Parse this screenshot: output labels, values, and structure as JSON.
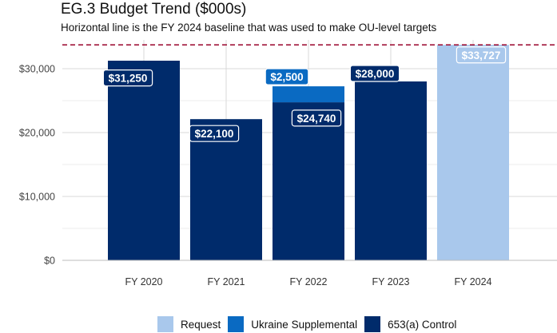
{
  "chart_data": {
    "type": "bar",
    "stacked": true,
    "title": "EG.3 Budget Trend ($000s)",
    "subtitle": "Horizontal line is the FY 2024 baseline that was used to make OU-level targets",
    "categories": [
      "FY 2020",
      "FY 2021",
      "FY 2022",
      "FY 2023",
      "FY 2024"
    ],
    "series": [
      {
        "name": "653(a) Control",
        "color": "#002b6b",
        "values": [
          31250,
          22100,
          24740,
          28000,
          0
        ]
      },
      {
        "name": "Ukraine Supplemental",
        "color": "#0a6ac2",
        "values": [
          0,
          0,
          2500,
          0,
          0
        ]
      },
      {
        "name": "Request",
        "color": "#a9c8ec",
        "values": [
          0,
          0,
          0,
          0,
          33727
        ]
      }
    ],
    "data_labels": [
      {
        "text": "$31,250",
        "category": "FY 2020",
        "series": "653(a) Control"
      },
      {
        "text": "$22,100",
        "category": "FY 2021",
        "series": "653(a) Control"
      },
      {
        "text": "$2,500",
        "category": "FY 2022",
        "series": "Ukraine Supplemental"
      },
      {
        "text": "$24,740",
        "category": "FY 2022",
        "series": "653(a) Control"
      },
      {
        "text": "$28,000",
        "category": "FY 2023",
        "series": "653(a) Control"
      },
      {
        "text": "$33,727",
        "category": "FY 2024",
        "series": "Request"
      }
    ],
    "baseline": {
      "value": 33727,
      "color": "#a0163a",
      "style": "dashed"
    },
    "ylim": [
      0,
      34500
    ],
    "yticks": [
      0,
      10000,
      20000,
      30000
    ],
    "ytick_labels": [
      "$0",
      "$10,000",
      "$20,000",
      "$30,000"
    ],
    "xlabel": "",
    "ylabel": "",
    "grid": true,
    "legend_position": "bottom",
    "legend_order": [
      "Request",
      "Ukraine Supplemental",
      "653(a) Control"
    ]
  }
}
